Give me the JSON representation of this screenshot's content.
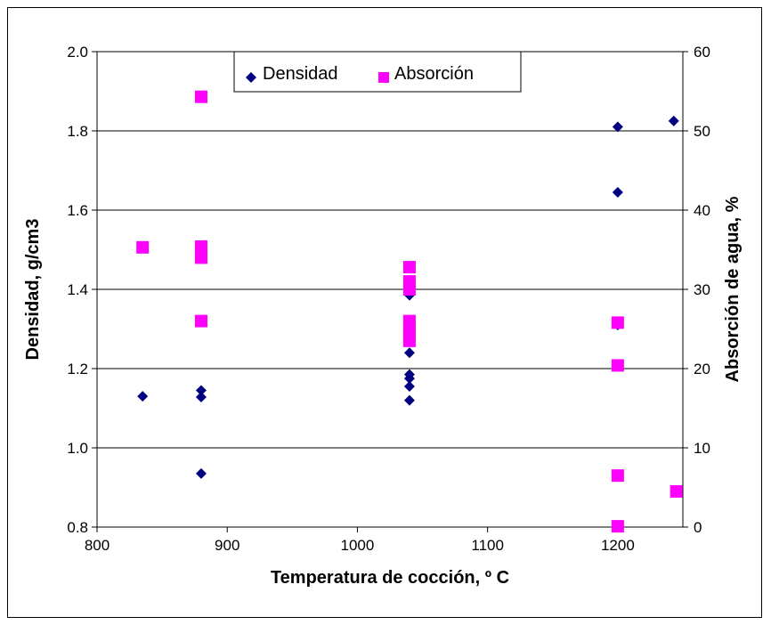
{
  "chart_data": {
    "type": "scatter",
    "xlabel": "Temperatura de cocción, º C",
    "ylabel": "Densidad, g/cm3",
    "y2label": "Absorción de agua, %",
    "xlim": [
      800,
      1250
    ],
    "xticks": [
      800,
      900,
      1000,
      1100,
      1200
    ],
    "ylim": [
      0.8,
      2.0
    ],
    "yticks": [
      "0.8",
      "1.0",
      "1.2",
      "1.4",
      "1.6",
      "1.8",
      "2.0"
    ],
    "y2lim": [
      0,
      60
    ],
    "y2ticks": [
      "0",
      "10",
      "20",
      "30",
      "40",
      "50",
      "60"
    ],
    "grid": "horizontal",
    "legend_position": "top-center",
    "series": [
      {
        "name": "Densidad",
        "axis": "left",
        "marker": "diamond",
        "color": "#000080",
        "points": [
          [
            835,
            1.13
          ],
          [
            880,
            1.145
          ],
          [
            880,
            1.128
          ],
          [
            880,
            0.935
          ],
          [
            1040,
            1.385
          ],
          [
            1040,
            1.24
          ],
          [
            1040,
            1.185
          ],
          [
            1040,
            1.175
          ],
          [
            1040,
            1.155
          ],
          [
            1040,
            1.12
          ],
          [
            1200,
            1.81
          ],
          [
            1200,
            1.645
          ],
          [
            1200,
            1.31
          ],
          [
            1243,
            1.825
          ]
        ]
      },
      {
        "name": "Absorción",
        "axis": "right",
        "marker": "square",
        "color": "#ff00ff",
        "points": [
          [
            835,
            35.3
          ],
          [
            880,
            54.3
          ],
          [
            880,
            35.4
          ],
          [
            880,
            34.5
          ],
          [
            880,
            34.0
          ],
          [
            880,
            26.0
          ],
          [
            1040,
            32.8
          ],
          [
            1040,
            31.0
          ],
          [
            1040,
            30.0
          ],
          [
            1040,
            26.0
          ],
          [
            1040,
            25.0
          ],
          [
            1040,
            24.5
          ],
          [
            1040,
            24.0
          ],
          [
            1040,
            23.5
          ],
          [
            1200,
            25.8
          ],
          [
            1200,
            20.4
          ],
          [
            1200,
            6.5
          ],
          [
            1200,
            0.1
          ],
          [
            1245,
            4.5
          ]
        ]
      }
    ]
  }
}
